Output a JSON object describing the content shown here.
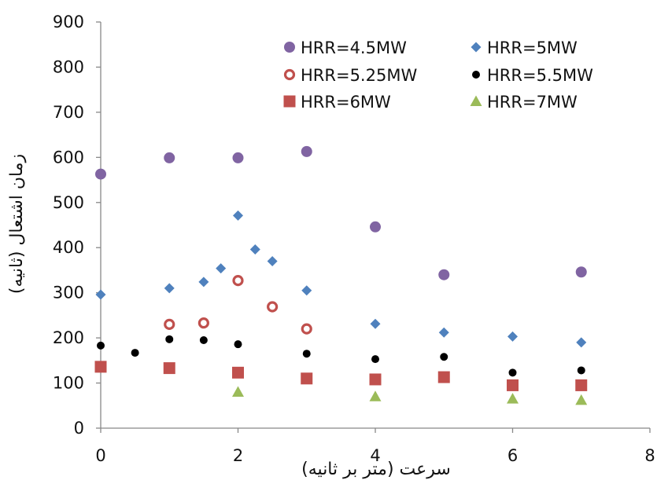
{
  "chart_data": {
    "type": "scatter",
    "title": "",
    "xlabel": "سرعت (متر بر ثانیه)",
    "ylabel": "زمان اشتعال (ثانیه)",
    "xlim": [
      0,
      8
    ],
    "ylim": [
      0,
      900
    ],
    "x_ticks": [
      0,
      2,
      4,
      6,
      8
    ],
    "y_ticks": [
      0,
      100,
      200,
      300,
      400,
      500,
      600,
      700,
      800,
      900
    ],
    "grid": false,
    "legend_position": "top-right",
    "series": [
      {
        "name": "HRR=4.5MW",
        "marker": "circle",
        "color": "#8064a2",
        "points": [
          [
            0,
            563
          ],
          [
            1,
            599
          ],
          [
            2,
            599
          ],
          [
            3,
            613
          ],
          [
            4,
            446
          ],
          [
            5,
            340
          ],
          [
            7,
            346
          ]
        ]
      },
      {
        "name": "HRR=5MW",
        "marker": "diamond",
        "color": "#4f81bd",
        "points": [
          [
            0,
            296
          ],
          [
            1,
            310
          ],
          [
            1.5,
            324
          ],
          [
            1.75,
            354
          ],
          [
            2,
            471
          ],
          [
            2.25,
            396
          ],
          [
            2.5,
            370
          ],
          [
            3,
            305
          ],
          [
            4,
            231
          ],
          [
            5,
            212
          ],
          [
            6,
            203
          ],
          [
            7,
            190
          ]
        ]
      },
      {
        "name": "HRR=5.25MW",
        "marker": "open-circle",
        "color": "#c0504d",
        "points": [
          [
            1,
            230
          ],
          [
            1.5,
            233
          ],
          [
            2,
            327
          ],
          [
            2.5,
            269
          ],
          [
            3,
            220
          ]
        ]
      },
      {
        "name": "HRR=5.5MW",
        "marker": "dot",
        "color": "#000000",
        "points": [
          [
            0,
            183
          ],
          [
            0.5,
            167
          ],
          [
            1,
            197
          ],
          [
            1.5,
            195
          ],
          [
            2,
            186
          ],
          [
            3,
            165
          ],
          [
            4,
            153
          ],
          [
            5,
            158
          ],
          [
            6,
            123
          ],
          [
            7,
            128
          ]
        ]
      },
      {
        "name": "HRR=6MW",
        "marker": "square",
        "color": "#c0504d",
        "points": [
          [
            0,
            136
          ],
          [
            1,
            133
          ],
          [
            2,
            123
          ],
          [
            3,
            110
          ],
          [
            4,
            108
          ],
          [
            5,
            113
          ],
          [
            6,
            95
          ],
          [
            7,
            95
          ]
        ]
      },
      {
        "name": "HRR=7MW",
        "marker": "triangle",
        "color": "#9bbb59",
        "points": [
          [
            2,
            80
          ],
          [
            4,
            70
          ],
          [
            6,
            65
          ],
          [
            7,
            62
          ]
        ]
      }
    ]
  }
}
